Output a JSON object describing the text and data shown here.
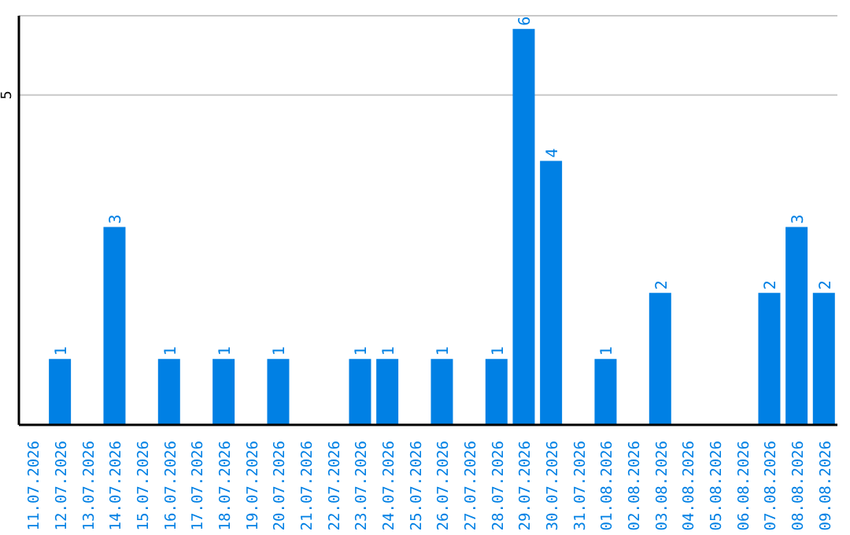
{
  "chart_data": {
    "type": "bar",
    "categories": [
      "11.07.2026",
      "12.07.2026",
      "13.07.2026",
      "14.07.2026",
      "15.07.2026",
      "16.07.2026",
      "17.07.2026",
      "18.07.2026",
      "19.07.2026",
      "20.07.2026",
      "21.07.2026",
      "22.07.2026",
      "23.07.2026",
      "24.07.2026",
      "25.07.2026",
      "26.07.2026",
      "27.07.2026",
      "28.07.2026",
      "29.07.2026",
      "30.07.2026",
      "31.07.2026",
      "01.08.2026",
      "02.08.2026",
      "03.08.2026",
      "04.08.2026",
      "05.08.2026",
      "06.08.2026",
      "07.08.2026",
      "08.08.2026",
      "09.08.2026"
    ],
    "values": [
      0,
      1,
      0,
      3,
      0,
      1,
      0,
      1,
      0,
      1,
      0,
      0,
      1,
      1,
      0,
      1,
      0,
      1,
      6,
      4,
      0,
      1,
      0,
      2,
      0,
      0,
      0,
      2,
      3,
      2
    ],
    "value_labels": [
      null,
      "1",
      null,
      "3",
      null,
      "1",
      null,
      "1",
      null,
      "1",
      null,
      null,
      "1",
      "1",
      null,
      "1",
      null,
      "1",
      "6",
      "4",
      null,
      "1",
      null,
      "2",
      null,
      null,
      null,
      "2",
      "3",
      "2"
    ],
    "color": "#0080e4",
    "ylim": [
      0,
      6.2
    ],
    "yticks": [
      5
    ],
    "grid": "y"
  }
}
